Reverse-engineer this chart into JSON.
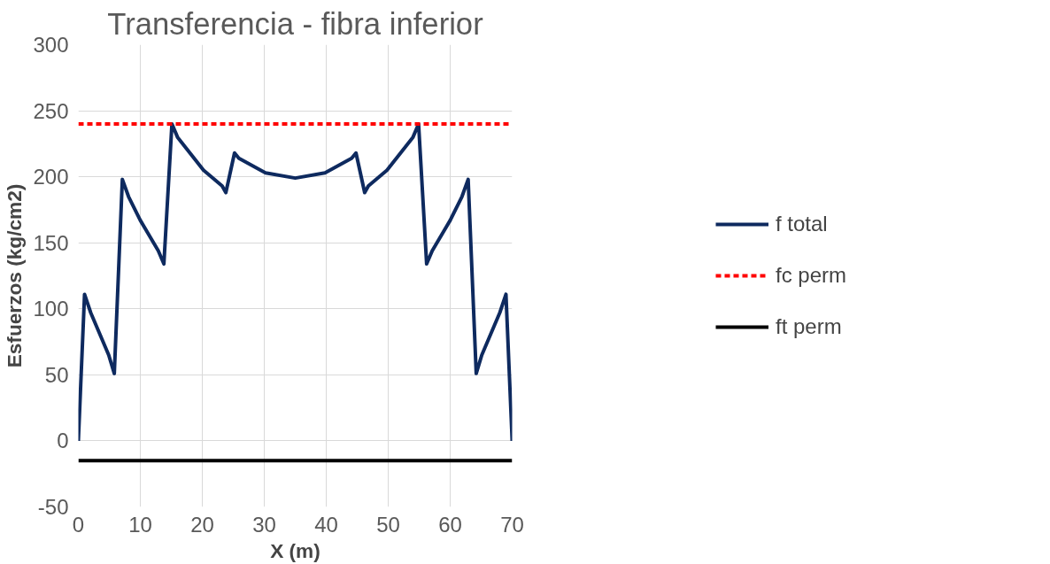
{
  "chart_data": {
    "type": "line",
    "title": "Transferencia - fibra inferior",
    "xlabel": "X (m)",
    "ylabel": "Esfuerzos (kg/cm2)",
    "xlim": [
      0,
      70
    ],
    "xticks": [
      0,
      10,
      20,
      30,
      40,
      50,
      60,
      70
    ],
    "ylim": [
      -50,
      300
    ],
    "yticks": [
      -50,
      0,
      50,
      100,
      150,
      200,
      250,
      300
    ],
    "grid": true,
    "legend": "right",
    "series": [
      {
        "name": "f total",
        "color": "#0e2a5f",
        "line_style": "solid",
        "x": [
          0,
          1.0,
          2.0,
          4.9,
          5.8,
          7.1,
          8.1,
          10,
          12.9,
          13.8,
          15.1,
          16.0,
          20.2,
          23.2,
          23.8,
          25.2,
          25.9,
          30.2,
          35,
          39.8,
          44.1,
          44.8,
          46.2,
          46.8,
          49.8,
          54.0,
          54.9,
          56.2,
          57.1,
          60,
          61.9,
          62.9,
          64.2,
          65.1,
          68.0,
          69.0,
          70
        ],
        "values": [
          0,
          111,
          97,
          65,
          51,
          198,
          185,
          167,
          144,
          134,
          240,
          230,
          205,
          193,
          188,
          218,
          214,
          203,
          199,
          203,
          214,
          218,
          188,
          193,
          205,
          230,
          240,
          134,
          144,
          167,
          185,
          198,
          51,
          65,
          97,
          111,
          0
        ]
      },
      {
        "name": "fc perm",
        "color": "#ff0000",
        "line_style": "dashed",
        "x": [
          0,
          70
        ],
        "values": [
          240,
          240
        ]
      },
      {
        "name": "ft perm",
        "color": "#000000",
        "line_style": "solid",
        "x": [
          0,
          70
        ],
        "values": [
          -15,
          -15
        ]
      }
    ]
  }
}
